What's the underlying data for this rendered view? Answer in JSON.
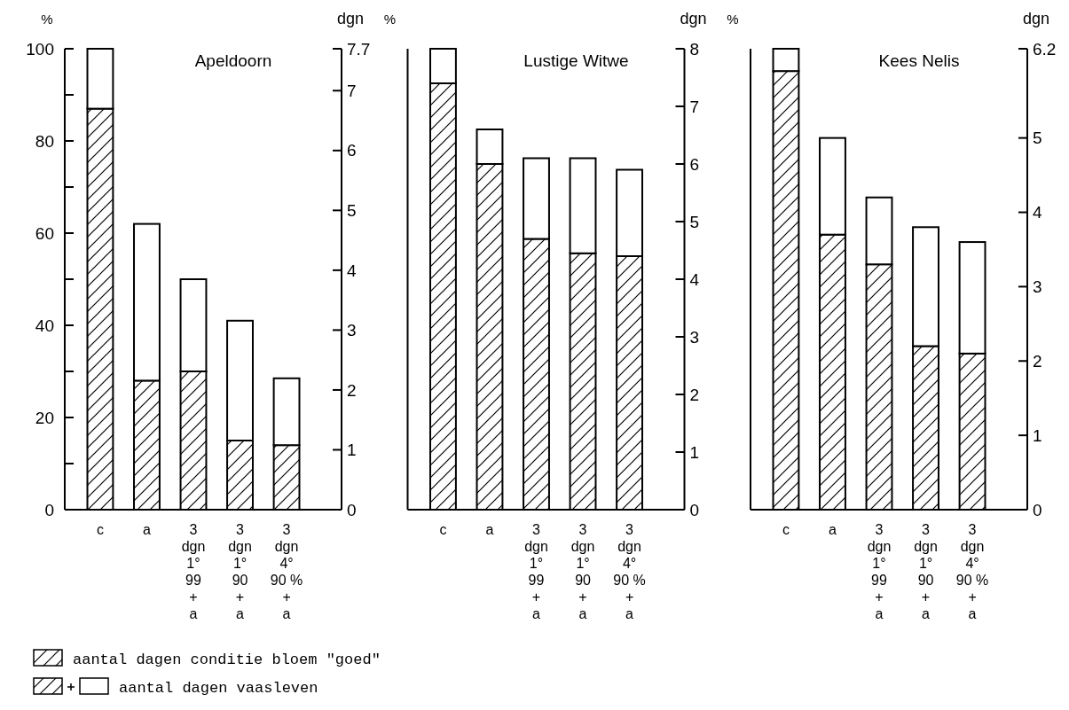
{
  "chart_data": [
    {
      "type": "bar",
      "title": "Apeldoorn",
      "ylabel": "%",
      "y2label": "dgn",
      "stacked": true,
      "categories": [
        "c",
        "a",
        "3\ndgn\n1°\n99\n+\na",
        "3\ndgn\n1°\n90\n+\na",
        "3\ndgn\n4°\n90 %\n+\na"
      ],
      "series": [
        {
          "name": "aantal dagen conditie bloem \"goed\"",
          "color": "#000000",
          "values": [
            87,
            28,
            30,
            15,
            14
          ]
        },
        {
          "name": "aantal dagen vaasleven",
          "color": "#ffffff",
          "values": [
            13,
            34,
            20,
            26,
            14.5
          ]
        }
      ],
      "ylim": [
        0,
        100
      ],
      "yticks": [
        0,
        {
          "value": 10,
          "label": null
        },
        20,
        {
          "value": 30,
          "label": null
        },
        40,
        {
          "value": 50,
          "label": null
        },
        60,
        {
          "value": 70,
          "label": null
        },
        80,
        {
          "value": 90,
          "label": null
        },
        100
      ],
      "y2lim": [
        0,
        7.7
      ],
      "y2ticks": [
        0,
        1,
        2,
        3,
        4,
        5,
        6,
        7,
        7.7
      ],
      "legend": "bottom"
    },
    {
      "type": "bar",
      "title": "Lustige Witwe",
      "ylabel": "%",
      "y2label": "dgn",
      "stacked": true,
      "categories": [
        "c",
        "a",
        "3\ndgn\n1°\n99\n+\na",
        "3\ndgn\n1°\n90\n+\na",
        "3\ndgn\n4°\n90 %\n+\na"
      ],
      "series": [
        {
          "color": "#000000",
          "axis": "y2",
          "values": [
            7.4,
            6.0,
            4.7,
            4.45,
            4.4
          ]
        },
        {
          "color": "#ffffff",
          "axis": "y2",
          "values": [
            0.6,
            0.6,
            1.4,
            1.65,
            1.5
          ]
        }
      ],
      "y2lim": [
        0,
        8
      ],
      "y2ticks": [
        0,
        1,
        2,
        3,
        4,
        5,
        6,
        7,
        8
      ]
    },
    {
      "type": "bar",
      "title": "Kees Nelis",
      "ylabel": "%",
      "y2label": "dgn",
      "stacked": true,
      "categories": [
        "c",
        "a",
        "3\ndgn\n1°\n99\n+\na",
        "3\ndgn\n1°\n90\n+\na",
        "3\ndgn\n4°\n90 %\n+\na"
      ],
      "series": [
        {
          "color": "#000000",
          "axis": "y2",
          "values": [
            5.9,
            3.7,
            3.3,
            2.2,
            2.1
          ]
        },
        {
          "color": "#ffffff",
          "axis": "y2",
          "values": [
            0.3,
            1.3,
            0.9,
            1.6,
            1.5
          ]
        }
      ],
      "y2lim": [
        0,
        6.2
      ],
      "y2ticks": [
        0,
        1,
        2,
        3,
        4,
        5,
        6.2
      ]
    }
  ]
}
